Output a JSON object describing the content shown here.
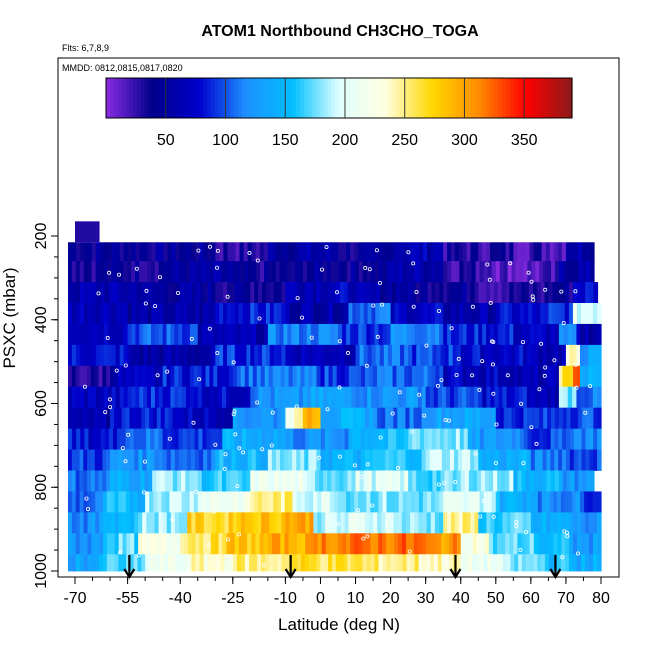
{
  "chart_data": {
    "type": "heatmap",
    "title": "ATOM1 Northbound CH3CHO_TOGA",
    "subtitle_flights": "Flts: 6,7,8,9",
    "subtitle_dates": "MMDD: 0812,0815,0817,0820",
    "xlabel": "Latitude (deg N)",
    "ylabel": "PSXC (mbar)",
    "xlim": [
      -70,
      80
    ],
    "ylim": [
      1000,
      100
    ],
    "x_ticks": [
      -70,
      -55,
      -40,
      -25,
      -10,
      0,
      10,
      20,
      30,
      40,
      50,
      60,
      70,
      80
    ],
    "y_ticks": [
      200,
      400,
      600,
      800,
      1000
    ],
    "colorbar": {
      "range": [
        0,
        390
      ],
      "ticks": [
        50,
        100,
        150,
        200,
        250,
        300,
        350
      ],
      "colors": [
        "#8a2be2",
        "#00008b",
        "#0000cd",
        "#1e90ff",
        "#00bfff",
        "#e0ffff",
        "#ffffe0",
        "#ffd700",
        "#ff8c00",
        "#ff0000",
        "#8b1a1a"
      ]
    },
    "pressure_bins": [
      {
        "p": [
          215,
          260
        ],
        "segments": [
          [
            -72,
            -30,
            45
          ],
          [
            -30,
            -15,
            30
          ],
          [
            -15,
            5,
            55
          ],
          [
            5,
            20,
            40
          ],
          [
            20,
            35,
            65
          ],
          [
            35,
            55,
            30
          ],
          [
            55,
            70,
            25
          ],
          [
            70,
            78,
            60
          ]
        ]
      },
      {
        "p": [
          260,
          310
        ],
        "segments": [
          [
            -72,
            -45,
            40
          ],
          [
            -45,
            -25,
            50
          ],
          [
            -25,
            -5,
            35
          ],
          [
            -5,
            20,
            45
          ],
          [
            20,
            35,
            60
          ],
          [
            35,
            50,
            30
          ],
          [
            50,
            68,
            15
          ],
          [
            68,
            78,
            55
          ]
        ]
      },
      {
        "p": [
          310,
          360
        ],
        "segments": [
          [
            -72,
            -50,
            60
          ],
          [
            -50,
            -30,
            50
          ],
          [
            -30,
            -10,
            40
          ],
          [
            -10,
            10,
            70
          ],
          [
            10,
            25,
            55
          ],
          [
            25,
            45,
            45
          ],
          [
            45,
            65,
            30
          ],
          [
            65,
            72,
            40
          ],
          [
            72,
            79,
            80
          ]
        ]
      },
      {
        "p": [
          360,
          410
        ],
        "segments": [
          [
            -72,
            -55,
            70
          ],
          [
            -55,
            -30,
            55
          ],
          [
            -30,
            -10,
            85
          ],
          [
            -10,
            8,
            60
          ],
          [
            8,
            20,
            110
          ],
          [
            20,
            35,
            70
          ],
          [
            35,
            50,
            60
          ],
          [
            50,
            65,
            75
          ],
          [
            65,
            72,
            90
          ],
          [
            72,
            80,
            200
          ]
        ]
      },
      {
        "p": [
          410,
          460
        ],
        "segments": [
          [
            -72,
            -55,
            75
          ],
          [
            -55,
            -35,
            100
          ],
          [
            -35,
            -15,
            60
          ],
          [
            -15,
            5,
            115
          ],
          [
            5,
            20,
            95
          ],
          [
            20,
            35,
            120
          ],
          [
            35,
            55,
            85
          ],
          [
            55,
            68,
            70
          ],
          [
            68,
            73,
            110
          ],
          [
            73,
            80,
            60
          ]
        ]
      },
      {
        "p": [
          460,
          510
        ],
        "segments": [
          [
            -72,
            -55,
            80
          ],
          [
            -55,
            -30,
            55
          ],
          [
            -30,
            -10,
            90
          ],
          [
            -10,
            10,
            70
          ],
          [
            10,
            25,
            105
          ],
          [
            25,
            40,
            95
          ],
          [
            40,
            60,
            75
          ],
          [
            60,
            70,
            65
          ],
          [
            70,
            74,
            230
          ],
          [
            74,
            80,
            130
          ]
        ]
      },
      {
        "p": [
          510,
          560
        ],
        "segments": [
          [
            -72,
            -60,
            30
          ],
          [
            -60,
            -45,
            65
          ],
          [
            -45,
            -25,
            85
          ],
          [
            -25,
            0,
            110
          ],
          [
            0,
            15,
            95
          ],
          [
            15,
            35,
            105
          ],
          [
            35,
            55,
            70
          ],
          [
            55,
            68,
            60
          ],
          [
            68,
            72,
            260
          ],
          [
            72,
            74,
            340
          ],
          [
            74,
            80,
            140
          ]
        ]
      },
      {
        "p": [
          560,
          610
        ],
        "segments": [
          [
            -72,
            -55,
            70
          ],
          [
            -55,
            -35,
            90
          ],
          [
            -35,
            -20,
            75
          ],
          [
            -20,
            -5,
            120
          ],
          [
            -5,
            10,
            130
          ],
          [
            10,
            30,
            125
          ],
          [
            30,
            45,
            95
          ],
          [
            45,
            60,
            80
          ],
          [
            60,
            68,
            65
          ],
          [
            68,
            73,
            180
          ],
          [
            73,
            80,
            110
          ]
        ]
      },
      {
        "p": [
          610,
          660
        ],
        "segments": [
          [
            -72,
            -60,
            55
          ],
          [
            -60,
            -40,
            85
          ],
          [
            -40,
            -25,
            70
          ],
          [
            -25,
            -10,
            125
          ],
          [
            -10,
            -5,
            230
          ],
          [
            -5,
            0,
            300
          ],
          [
            0,
            15,
            140
          ],
          [
            15,
            30,
            110
          ],
          [
            30,
            50,
            135
          ],
          [
            50,
            68,
            90
          ],
          [
            68,
            80,
            100
          ]
        ]
      },
      {
        "p": [
          660,
          710
        ],
        "segments": [
          [
            -72,
            -58,
            80
          ],
          [
            -58,
            -45,
            110
          ],
          [
            -45,
            -28,
            95
          ],
          [
            -28,
            -10,
            140
          ],
          [
            -10,
            8,
            120
          ],
          [
            8,
            25,
            150
          ],
          [
            25,
            42,
            180
          ],
          [
            42,
            58,
            125
          ],
          [
            58,
            70,
            95
          ],
          [
            70,
            80,
            120
          ]
        ]
      },
      {
        "p": [
          710,
          760
        ],
        "segments": [
          [
            -72,
            -60,
            95
          ],
          [
            -60,
            -45,
            125
          ],
          [
            -45,
            -30,
            110
          ],
          [
            -30,
            -15,
            150
          ],
          [
            -15,
            0,
            175
          ],
          [
            0,
            15,
            145
          ],
          [
            15,
            30,
            160
          ],
          [
            30,
            45,
            190
          ],
          [
            45,
            60,
            140
          ],
          [
            60,
            70,
            115
          ],
          [
            70,
            80,
            100
          ]
        ]
      },
      {
        "p": [
          760,
          810
        ],
        "segments": [
          [
            -72,
            -60,
            110
          ],
          [
            -60,
            -48,
            140
          ],
          [
            -48,
            -35,
            185
          ],
          [
            -35,
            -20,
            160
          ],
          [
            -20,
            -5,
            210
          ],
          [
            -5,
            10,
            180
          ],
          [
            10,
            25,
            200
          ],
          [
            25,
            40,
            170
          ],
          [
            40,
            55,
            185
          ],
          [
            55,
            68,
            150
          ],
          [
            68,
            78,
            125
          ]
        ]
      },
      {
        "p": [
          810,
          860
        ],
        "segments": [
          [
            -72,
            -62,
            105
          ],
          [
            -62,
            -50,
            150
          ],
          [
            -50,
            -35,
            190
          ],
          [
            -35,
            -20,
            215
          ],
          [
            -20,
            -8,
            250
          ],
          [
            -8,
            5,
            200
          ],
          [
            5,
            20,
            180
          ],
          [
            20,
            35,
            175
          ],
          [
            35,
            50,
            200
          ],
          [
            50,
            62,
            145
          ],
          [
            62,
            74,
            120
          ],
          [
            74,
            80,
            100
          ]
        ]
      },
      {
        "p": [
          860,
          910
        ],
        "segments": [
          [
            -72,
            -62,
            120
          ],
          [
            -62,
            -52,
            155
          ],
          [
            -52,
            -38,
            185
          ],
          [
            -38,
            -25,
            270
          ],
          [
            -25,
            -10,
            285
          ],
          [
            -10,
            -2,
            300
          ],
          [
            -2,
            8,
            190
          ],
          [
            8,
            22,
            200
          ],
          [
            22,
            35,
            180
          ],
          [
            35,
            45,
            245
          ],
          [
            45,
            60,
            165
          ],
          [
            60,
            72,
            140
          ],
          [
            72,
            80,
            120
          ]
        ]
      },
      {
        "p": [
          910,
          960
        ],
        "segments": [
          [
            -72,
            -62,
            125
          ],
          [
            -62,
            -52,
            170
          ],
          [
            -52,
            -40,
            220
          ],
          [
            -40,
            -28,
            260
          ],
          [
            -28,
            -15,
            280
          ],
          [
            -15,
            -2,
            295
          ],
          [
            -2,
            12,
            315
          ],
          [
            12,
            30,
            320
          ],
          [
            30,
            40,
            305
          ],
          [
            40,
            48,
            230
          ],
          [
            48,
            62,
            170
          ],
          [
            62,
            72,
            150
          ],
          [
            72,
            80,
            125
          ]
        ]
      },
      {
        "p": [
          960,
          1000
        ],
        "segments": [
          [
            -72,
            -62,
            135
          ],
          [
            -62,
            -50,
            165
          ],
          [
            -50,
            -38,
            210
          ],
          [
            -38,
            -25,
            235
          ],
          [
            -25,
            -10,
            250
          ],
          [
            -10,
            0,
            265
          ],
          [
            0,
            12,
            260
          ],
          [
            12,
            28,
            250
          ],
          [
            28,
            40,
            240
          ],
          [
            40,
            52,
            210
          ],
          [
            52,
            64,
            175
          ],
          [
            64,
            72,
            155
          ],
          [
            72,
            80,
            140
          ]
        ]
      }
    ],
    "extra_cells": [
      {
        "p": [
          165,
          215
        ],
        "x": [
          -70,
          -63
        ],
        "value": 30
      }
    ],
    "arrows_lat": [
      -54.5,
      -8.5,
      38.5,
      67
    ]
  }
}
